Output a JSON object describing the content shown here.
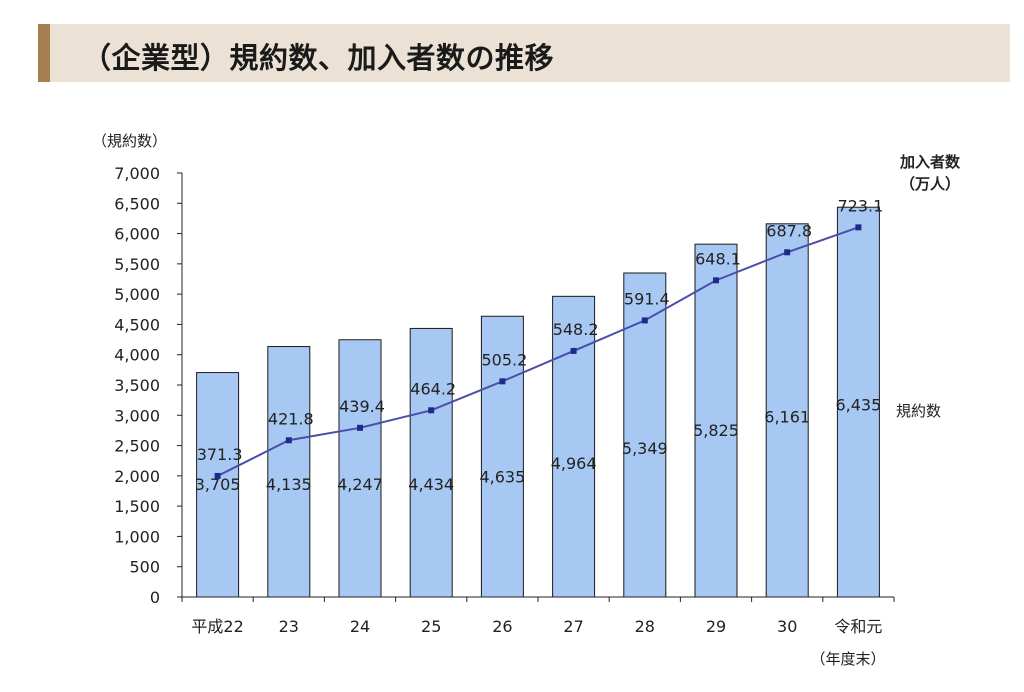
{
  "page_title": "（企業型）規約数、加入者数の推移",
  "chart_data": {
    "type": "bar",
    "categories": [
      "平成22",
      "23",
      "24",
      "25",
      "26",
      "27",
      "28",
      "29",
      "30",
      "令和元"
    ],
    "x_unit_label": "（年度末）",
    "y_axis_label": "（規約数）",
    "ylim": [
      0,
      7000
    ],
    "y_ticks": [
      0,
      500,
      1000,
      1500,
      2000,
      2500,
      3000,
      3500,
      4000,
      4500,
      5000,
      5500,
      6000,
      6500,
      7000
    ],
    "y_tick_labels": [
      "0",
      "500",
      "1,000",
      "1,500",
      "2,000",
      "2,500",
      "3,000",
      "3,500",
      "4,000",
      "4,500",
      "5,000",
      "5,500",
      "6,000",
      "6,500",
      "7,000"
    ],
    "series": [
      {
        "name": "規約数",
        "type": "bar",
        "color": "#a8c8f4",
        "values": [
          3705,
          4135,
          4247,
          4434,
          4635,
          4964,
          5349,
          5825,
          6161,
          6435
        ],
        "labels": [
          "3,705",
          "4,135",
          "4,247",
          "4,434",
          "4,635",
          "4,964",
          "5,349",
          "5,825",
          "6,161",
          "6,435"
        ]
      },
      {
        "name_line1": "加入者数",
        "name_line2": "（万人）",
        "type": "line",
        "color": "#4b4ea8",
        "values": [
          371.3,
          421.8,
          439.4,
          464.2,
          505.2,
          548.2,
          591.4,
          648.1,
          687.8,
          723.1
        ],
        "labels": [
          "371.3",
          "421.8",
          "439.4",
          "464.2",
          "505.2",
          "548.2",
          "591.4",
          "648.1",
          "687.8",
          "723.1"
        ]
      }
    ],
    "grid": false
  }
}
